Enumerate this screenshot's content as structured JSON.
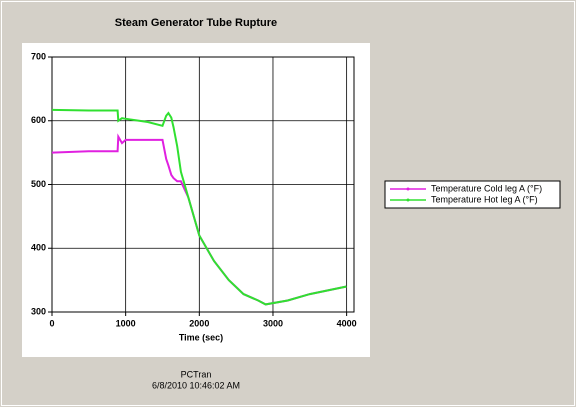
{
  "chart_data": {
    "type": "line",
    "title": "Steam Generator Tube Rupture",
    "x_label": "Time (sec)",
    "footer": [
      "PCTran",
      "6/8/2010 10:46:02 AM"
    ],
    "x": [
      0,
      500,
      890,
      900,
      950,
      1000,
      1300,
      1500,
      1550,
      1580,
      1620,
      1650,
      1700,
      1750,
      1850,
      2000,
      2200,
      2400,
      2600,
      2800,
      2900,
      3200,
      3500,
      4000
    ],
    "series": [
      {
        "name": "Temperature Cold leg A (°F)",
        "color": "#e020e0",
        "values": [
          550,
          552,
          552,
          575,
          565,
          570,
          570,
          570,
          540,
          530,
          515,
          510,
          505,
          505,
          480,
          420,
          380,
          350,
          328,
          318,
          312,
          318,
          328,
          340
        ]
      },
      {
        "name": "Temperature Hot leg A (°F)",
        "color": "#30e030",
        "values": [
          617,
          616,
          616,
          600,
          604,
          603,
          598,
          592,
          608,
          612,
          605,
          590,
          560,
          520,
          480,
          420,
          380,
          350,
          328,
          318,
          312,
          318,
          328,
          340
        ]
      }
    ],
    "xlim": [
      0,
      4100
    ],
    "xticks": [
      0,
      1000,
      2000,
      3000,
      4000
    ],
    "ylim": [
      300,
      700
    ],
    "yticks": [
      300,
      400,
      500,
      600,
      700
    ],
    "grid": true,
    "legend": "right"
  }
}
